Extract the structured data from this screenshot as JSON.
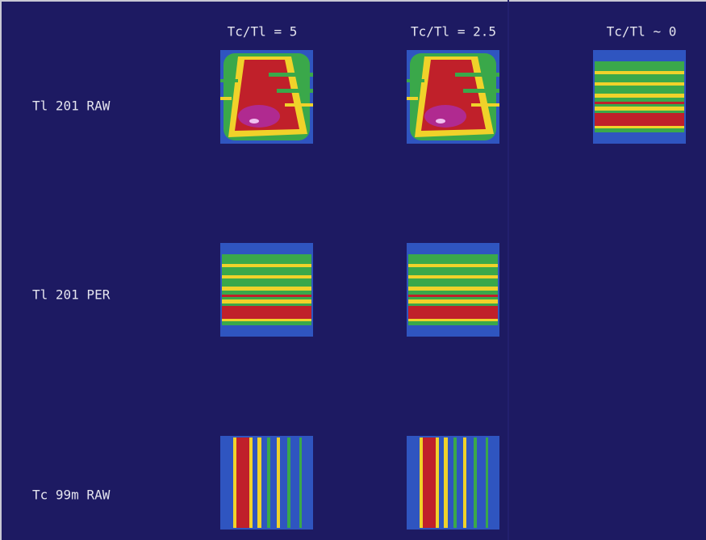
{
  "columns": [
    "Tc/Tl = 5",
    "Tc/Tl = 2.5",
    "Tc/Tl ~ 0"
  ],
  "rows": [
    "Tl 201 RAW",
    "Tl 201 PER",
    "Tc 99m RAW"
  ]
}
